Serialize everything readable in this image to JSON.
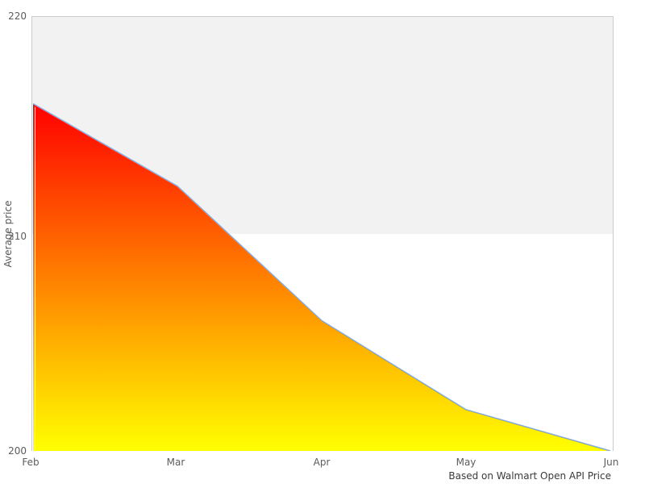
{
  "axes": {
    "y_label": "Average price",
    "y_tick_labels": [
      "220",
      "210",
      "200"
    ],
    "x_tick_labels": [
      "Feb",
      "Mar",
      "Apr",
      "May",
      "Jun"
    ]
  },
  "caption": {
    "text": "Based on Walmart Open API Price"
  },
  "colors": {
    "plot_border": "#cccccc",
    "band_fill": "#f2f2f2",
    "tick_text": "#5c5c5c",
    "caption_text": "#3a3a3a",
    "series_line": "#85a8d8",
    "gradient_top": "#ff0000",
    "gradient_bottom": "#ffff00"
  },
  "chart_data": {
    "type": "area",
    "categories": [
      "Feb",
      "Mar",
      "Apr",
      "May",
      "Jun"
    ],
    "values": [
      216,
      212.2,
      206,
      201.9,
      200
    ],
    "title": "",
    "xlabel": "",
    "ylabel": "Average price",
    "ylim": [
      200,
      220
    ],
    "yticks": [
      200,
      210,
      220
    ],
    "grid": false,
    "legend_position": "none",
    "caption": "Based on Walmart Open API Price",
    "bands": [
      {
        "from": 210,
        "to": 220,
        "color": "#f2f2f2"
      }
    ],
    "line_color": "#85a8d8",
    "fill_gradient": [
      {
        "offset": 0,
        "color": "#ff0000"
      },
      {
        "offset": 1,
        "color": "#ffff00"
      }
    ]
  }
}
